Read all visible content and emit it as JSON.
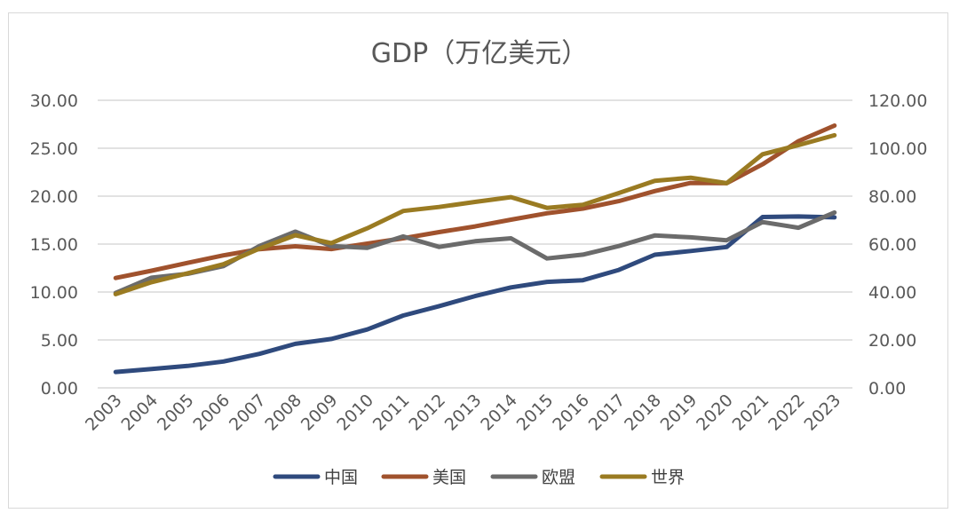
{
  "chart_data": {
    "type": "line",
    "title": "GDP（万亿美元）",
    "x": [
      "2003",
      "2004",
      "2005",
      "2006",
      "2007",
      "2008",
      "2009",
      "2010",
      "2011",
      "2012",
      "2013",
      "2014",
      "2015",
      "2016",
      "2017",
      "2018",
      "2019",
      "2020",
      "2021",
      "2022",
      "2023"
    ],
    "left_axis": {
      "ylim": [
        0,
        30
      ],
      "ticks": [
        "0.00",
        "5.00",
        "10.00",
        "15.00",
        "20.00",
        "25.00",
        "30.00"
      ]
    },
    "right_axis": {
      "ylim": [
        0,
        120
      ],
      "ticks": [
        "0.00",
        "20.00",
        "40.00",
        "60.00",
        "80.00",
        "100.00",
        "120.00"
      ]
    },
    "grid": true,
    "legend": "bottom",
    "series": [
      {
        "name": "中国",
        "axis": "left",
        "color": "#2f4a7d",
        "values": [
          1.66,
          1.96,
          2.29,
          2.75,
          3.55,
          4.59,
          5.1,
          6.09,
          7.55,
          8.53,
          9.57,
          10.48,
          11.06,
          11.23,
          12.31,
          13.89,
          14.28,
          14.69,
          17.82,
          17.88,
          17.79
        ]
      },
      {
        "name": "美国",
        "axis": "left",
        "color": "#a0522d",
        "values": [
          11.46,
          12.22,
          13.04,
          13.82,
          14.47,
          14.77,
          14.48,
          15.05,
          15.6,
          16.25,
          16.84,
          17.55,
          18.21,
          18.7,
          19.48,
          20.53,
          21.38,
          21.35,
          23.32,
          25.74,
          27.36
        ]
      },
      {
        "name": "欧盟",
        "axis": "left",
        "color": "#6b6b6b",
        "values": [
          9.9,
          11.5,
          11.9,
          12.7,
          14.8,
          16.3,
          14.8,
          14.6,
          15.8,
          14.7,
          15.3,
          15.6,
          13.5,
          13.9,
          14.8,
          15.9,
          15.7,
          15.4,
          17.3,
          16.7,
          18.3
        ]
      },
      {
        "name": "世界",
        "axis": "right",
        "color": "#9a7b22",
        "values": [
          39.1,
          44.1,
          47.8,
          51.6,
          58.1,
          63.7,
          60.4,
          66.6,
          73.8,
          75.5,
          77.6,
          79.6,
          75.1,
          76.4,
          81.3,
          86.4,
          87.7,
          85.4,
          97.5,
          101.3,
          105.4
        ]
      }
    ]
  }
}
